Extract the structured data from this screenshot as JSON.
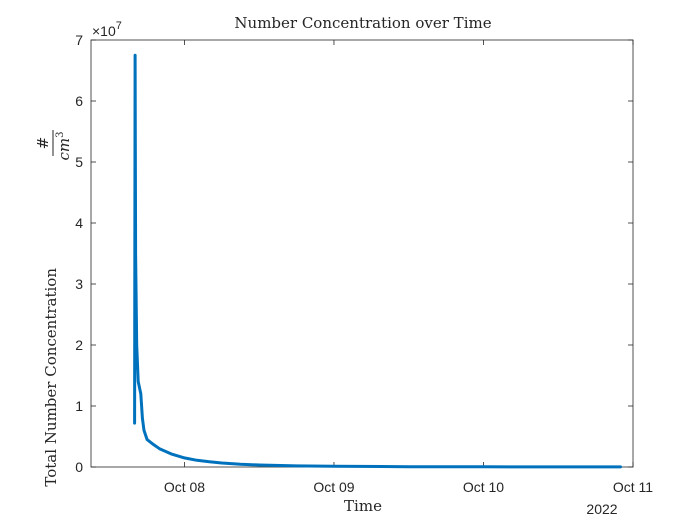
{
  "chart_data": {
    "type": "line",
    "title": "Number Concentration over Time",
    "xlabel": "Time",
    "ylabel": "Total Number Concentration",
    "ylabel_unit_numerator": "#",
    "ylabel_unit_denominator_base": "cm",
    "ylabel_unit_denominator_exp": "3",
    "y_exponent_base": "×10",
    "y_exponent_power": "7",
    "x_year_label": "2022",
    "xlim": [
      "2022-10-07 09:00",
      "2022-10-11 00:00"
    ],
    "ylim": [
      0,
      70000000
    ],
    "x_ticks": [
      {
        "value": "2022-10-08 00:00",
        "label": "Oct 08"
      },
      {
        "value": "2022-10-09 00:00",
        "label": "Oct 09"
      },
      {
        "value": "2022-10-10 00:00",
        "label": "Oct 10"
      },
      {
        "value": "2022-10-11 00:00",
        "label": "Oct 11"
      }
    ],
    "y_ticks": [
      {
        "value": 0,
        "label": "0"
      },
      {
        "value": 10000000,
        "label": "1"
      },
      {
        "value": 20000000,
        "label": "2"
      },
      {
        "value": 30000000,
        "label": "3"
      },
      {
        "value": 40000000,
        "label": "4"
      },
      {
        "value": 50000000,
        "label": "5"
      },
      {
        "value": 60000000,
        "label": "6"
      },
      {
        "value": 70000000,
        "label": "7"
      }
    ],
    "grid": false,
    "series": [
      {
        "color": "#0072BD",
        "x": [
          "2022-10-07 16:00",
          "2022-10-07 16:05",
          "2022-10-07 16:10",
          "2022-10-07 16:20",
          "2022-10-07 16:35",
          "2022-10-07 17:00",
          "2022-10-07 17:15",
          "2022-10-07 17:30",
          "2022-10-07 18:00",
          "2022-10-07 19:00",
          "2022-10-07 20:00",
          "2022-10-07 22:00",
          "2022-10-08 00:00",
          "2022-10-08 02:00",
          "2022-10-08 04:00",
          "2022-10-08 06:00",
          "2022-10-08 09:00",
          "2022-10-08 12:00",
          "2022-10-08 18:00",
          "2022-10-09 00:00",
          "2022-10-09 12:00",
          "2022-10-10 00:00",
          "2022-10-10 12:00",
          "2022-10-10 22:00"
        ],
        "y": [
          7200000,
          67500000,
          35000000,
          20000000,
          14000000,
          12000000,
          8000000,
          6000000,
          4500000,
          3700000,
          3000000,
          2100000,
          1500000,
          1100000,
          850000,
          650000,
          450000,
          320000,
          180000,
          110000,
          50000,
          25000,
          15000,
          10000
        ]
      }
    ]
  }
}
